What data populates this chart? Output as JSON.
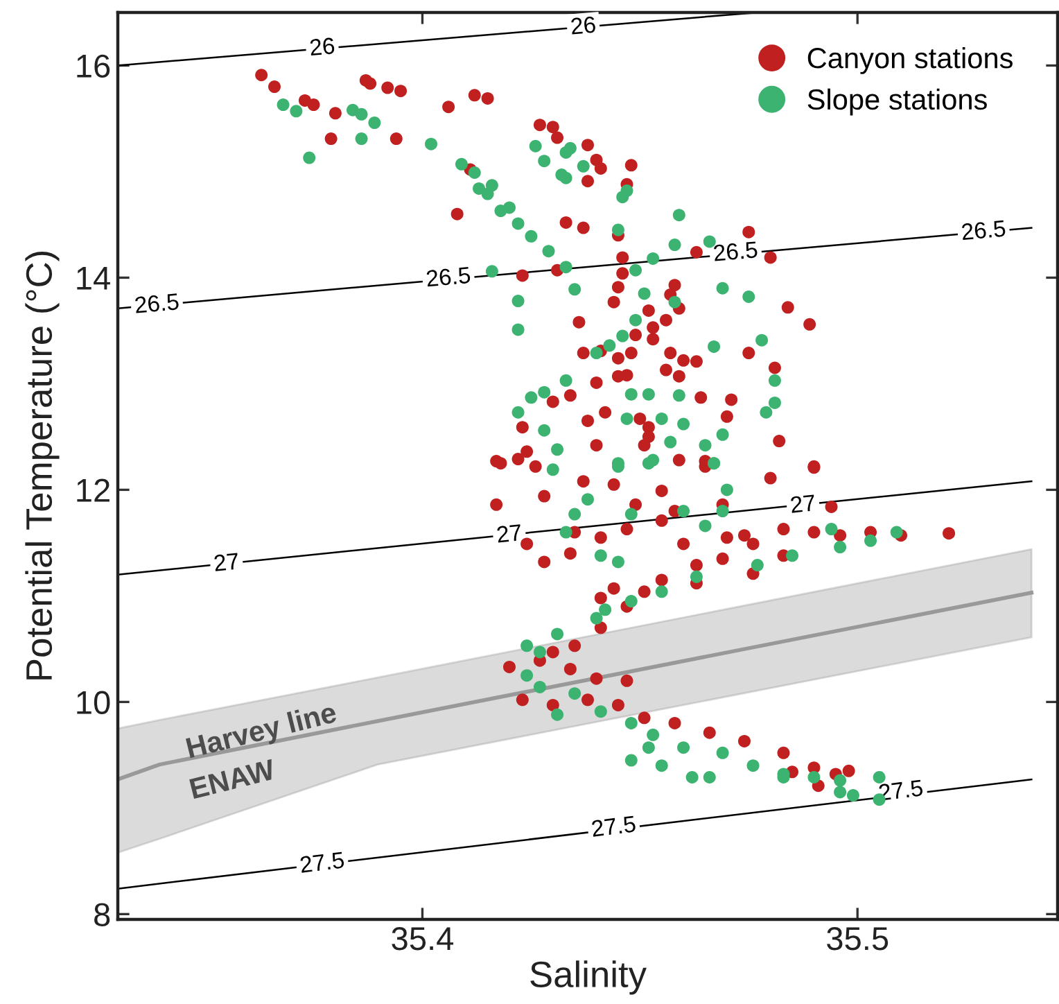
{
  "chart_data": {
    "type": "scatter",
    "xlabel": "Salinity",
    "ylabel": "Potential Temperature (°C)",
    "xlim": [
      35.33,
      35.546
    ],
    "ylim": [
      7.95,
      16.5
    ],
    "xticks": [
      35.4,
      35.5
    ],
    "yticks": [
      8,
      10,
      12,
      14,
      16
    ],
    "grid": false,
    "legend": "top right",
    "marker": "circle",
    "series": [
      {
        "type": "line",
        "marker": "none",
        "color": "#000000",
        "x": [
          35.33,
          35.477
        ],
        "values": [
          16.0,
          16.5
        ]
      },
      {
        "type": "line",
        "marker": "none",
        "color": "#000000",
        "x": [
          35.33,
          35.54
        ],
        "values": [
          13.71,
          14.47
        ]
      },
      {
        "type": "line",
        "marker": "none",
        "color": "#000000",
        "x": [
          35.33,
          35.54
        ],
        "values": [
          11.2,
          12.08
        ]
      },
      {
        "type": "line",
        "marker": "none",
        "color": "#000000",
        "x": [
          35.33,
          35.54
        ],
        "values": [
          8.24,
          9.27
        ]
      },
      {
        "type": "line",
        "marker": "none",
        "color": "#999999",
        "x": [
          35.33,
          35.3396,
          35.3897,
          35.54
        ],
        "values": [
          9.27,
          9.41,
          9.82,
          11.03
        ],
        "lower": [
          8.58,
          8.71,
          9.41,
          10.61
        ],
        "upper": [
          9.75,
          9.83,
          10.23,
          11.44
        ]
      },
      {
        "name": "Canyon stations",
        "color": "#c0201f",
        "x": [
          35.363,
          35.366,
          35.373,
          35.375,
          35.38,
          35.379,
          35.387,
          35.388,
          35.392,
          35.395,
          35.394,
          35.406,
          35.412,
          35.415,
          35.408,
          35.411,
          35.427,
          35.43,
          35.431,
          35.438,
          35.44,
          35.441,
          35.438,
          35.448,
          35.447,
          35.433,
          35.437,
          35.445,
          35.475,
          35.48,
          35.463,
          35.446,
          35.423,
          35.431,
          35.446,
          35.445,
          35.458,
          35.457,
          35.459,
          35.444,
          35.452,
          35.453,
          35.456,
          35.436,
          35.453,
          35.484,
          35.489,
          35.449,
          35.437,
          35.441,
          35.445,
          35.448,
          35.457,
          35.46,
          35.463,
          35.459,
          35.475,
          35.481,
          35.44,
          35.445,
          35.447,
          35.434,
          35.43,
          35.464,
          35.471,
          35.442,
          35.45,
          35.452,
          35.452,
          35.451,
          35.438,
          35.423,
          35.424,
          35.418,
          35.422,
          35.44,
          35.456,
          35.482,
          35.49,
          35.47,
          35.465,
          35.459,
          35.417,
          35.426,
          35.417,
          35.428,
          35.424,
          35.428,
          35.434,
          35.435,
          35.441,
          35.447,
          35.455,
          35.46,
          35.463,
          35.469,
          35.476,
          35.483,
          35.49,
          35.496,
          35.503,
          35.51,
          35.521,
          35.49,
          35.48,
          35.494,
          35.474,
          35.483,
          35.476,
          35.455,
          35.444,
          35.441,
          35.447,
          35.441,
          35.435,
          35.43,
          35.42,
          35.427,
          35.434,
          35.44,
          35.447,
          35.423,
          35.43,
          35.438,
          35.445,
          35.451,
          35.458,
          35.466,
          35.474,
          35.483,
          35.49,
          35.495,
          35.491,
          35.498,
          35.485,
          35.437,
          35.444,
          35.455,
          35.465,
          35.469,
          35.458,
          35.449,
          35.47,
          35.463,
          35.451
        ],
        "values": [
          15.91,
          15.8,
          15.67,
          15.63,
          15.55,
          15.31,
          15.86,
          15.83,
          15.79,
          15.76,
          15.31,
          15.61,
          15.72,
          15.69,
          14.6,
          15.02,
          15.44,
          15.42,
          15.32,
          15.25,
          15.11,
          15.03,
          14.91,
          15.06,
          14.88,
          14.52,
          14.47,
          14.4,
          14.43,
          14.19,
          14.24,
          14.19,
          14.02,
          14.07,
          14.04,
          13.91,
          13.93,
          13.84,
          13.71,
          13.77,
          13.69,
          13.53,
          13.6,
          13.58,
          13.42,
          13.72,
          13.56,
          13.46,
          13.29,
          13.31,
          13.24,
          13.29,
          13.29,
          13.22,
          13.21,
          13.07,
          13.29,
          13.15,
          13.01,
          13.07,
          13.08,
          12.89,
          12.83,
          12.87,
          12.85,
          12.73,
          12.67,
          12.59,
          12.5,
          12.42,
          12.65,
          12.59,
          12.36,
          12.25,
          12.29,
          12.42,
          13.13,
          12.46,
          12.21,
          12.69,
          12.27,
          12.28,
          12.27,
          12.22,
          11.86,
          11.94,
          11.49,
          11.32,
          11.4,
          11.6,
          11.55,
          11.63,
          11.71,
          11.49,
          11.29,
          11.35,
          11.49,
          11.63,
          11.6,
          11.57,
          11.6,
          11.57,
          11.59,
          12.22,
          12.11,
          11.84,
          11.57,
          11.38,
          11.21,
          11.15,
          11.07,
          10.98,
          10.9,
          10.7,
          10.53,
          10.47,
          10.33,
          10.39,
          10.31,
          10.22,
          10.2,
          10.02,
          9.97,
          10.02,
          9.97,
          9.85,
          9.8,
          9.71,
          9.63,
          9.52,
          9.38,
          9.32,
          9.21,
          9.35,
          9.34,
          12.08,
          12.05,
          11.99,
          12.22,
          11.86,
          11.8,
          11.86,
          11.55,
          11.12,
          11.04
        ]
      },
      {
        "name": "Slope stations",
        "color": "#3cb371",
        "x": [
          35.368,
          35.371,
          35.384,
          35.386,
          35.389,
          35.386,
          35.374,
          35.402,
          35.409,
          35.412,
          35.413,
          35.415,
          35.416,
          35.418,
          35.42,
          35.422,
          35.425,
          35.429,
          35.433,
          35.416,
          35.422,
          35.422,
          35.435,
          35.426,
          35.428,
          35.433,
          35.434,
          35.437,
          35.433,
          35.432,
          35.446,
          35.447,
          35.459,
          35.445,
          35.453,
          35.458,
          35.466,
          35.449,
          35.451,
          35.458,
          35.469,
          35.475,
          35.449,
          35.446,
          35.443,
          35.44,
          35.478,
          35.467,
          35.433,
          35.428,
          35.425,
          35.422,
          35.428,
          35.431,
          35.448,
          35.452,
          35.459,
          35.455,
          35.447,
          35.457,
          35.46,
          35.465,
          35.469,
          35.481,
          35.481,
          35.479,
          35.467,
          35.453,
          35.445,
          35.43,
          35.438,
          35.435,
          35.433,
          35.445,
          35.448,
          35.452,
          35.467,
          35.47,
          35.469,
          35.494,
          35.509,
          35.503,
          35.496,
          35.485,
          35.477,
          35.463,
          35.455,
          35.448,
          35.445,
          35.441,
          35.442,
          35.44,
          35.431,
          35.424,
          35.427,
          35.424,
          35.427,
          35.431,
          35.435,
          35.441,
          35.448,
          35.453,
          35.46,
          35.469,
          35.476,
          35.483,
          35.49,
          35.496,
          35.505,
          35.496,
          35.505,
          35.499,
          35.462,
          35.455,
          35.448,
          35.452,
          35.483,
          35.466,
          35.46,
          35.465
        ],
        "values": [
          15.63,
          15.57,
          15.58,
          15.54,
          15.46,
          15.31,
          15.13,
          15.26,
          15.07,
          14.99,
          14.84,
          14.79,
          14.87,
          14.63,
          14.66,
          14.51,
          14.39,
          14.25,
          14.1,
          14.06,
          13.78,
          13.51,
          13.89,
          15.24,
          15.1,
          15.18,
          15.22,
          15.05,
          14.94,
          14.97,
          14.76,
          14.82,
          14.59,
          14.45,
          14.18,
          14.31,
          14.34,
          14.07,
          13.85,
          13.77,
          13.9,
          13.82,
          13.6,
          13.45,
          13.36,
          13.29,
          13.41,
          13.35,
          13.03,
          12.92,
          12.87,
          12.73,
          12.56,
          12.38,
          12.9,
          12.9,
          12.89,
          12.67,
          12.67,
          12.45,
          12.62,
          12.42,
          12.52,
          13.03,
          12.82,
          12.73,
          12.25,
          12.28,
          12.25,
          12.19,
          11.91,
          11.77,
          11.6,
          12.22,
          11.77,
          12.25,
          12.25,
          12.0,
          11.8,
          11.63,
          11.6,
          11.52,
          11.46,
          11.38,
          11.29,
          11.18,
          11.04,
          10.95,
          11.32,
          11.38,
          10.87,
          10.79,
          10.64,
          10.53,
          10.47,
          10.25,
          10.14,
          9.88,
          10.08,
          9.91,
          9.8,
          9.69,
          9.57,
          9.52,
          9.4,
          9.32,
          9.29,
          9.26,
          9.29,
          9.15,
          9.08,
          9.12,
          9.29,
          9.4,
          9.45,
          9.57,
          9.29,
          9.29,
          11.8,
          11.66
        ]
      }
    ],
    "annotations": [
      {
        "text": "26",
        "x": 35.377,
        "y": 16.16
      },
      {
        "text": "26",
        "x": 35.437,
        "y": 16.36
      },
      {
        "text": "26.5",
        "x": 35.339,
        "y": 13.74
      },
      {
        "text": "26.5",
        "x": 35.406,
        "y": 13.99
      },
      {
        "text": "26.5",
        "x": 35.472,
        "y": 14.23
      },
      {
        "text": "26.5",
        "x": 35.529,
        "y": 14.43
      },
      {
        "text": "27",
        "x": 35.355,
        "y": 11.3
      },
      {
        "text": "27",
        "x": 35.42,
        "y": 11.57
      },
      {
        "text": "27",
        "x": 35.4875,
        "y": 11.85
      },
      {
        "text": "27.5",
        "x": 35.377,
        "y": 8.47
      },
      {
        "text": "27.5",
        "x": 35.444,
        "y": 8.81
      },
      {
        "text": "27.5",
        "x": 35.51,
        "y": 9.15
      },
      "Harvey line",
      "ENAW"
    ]
  }
}
